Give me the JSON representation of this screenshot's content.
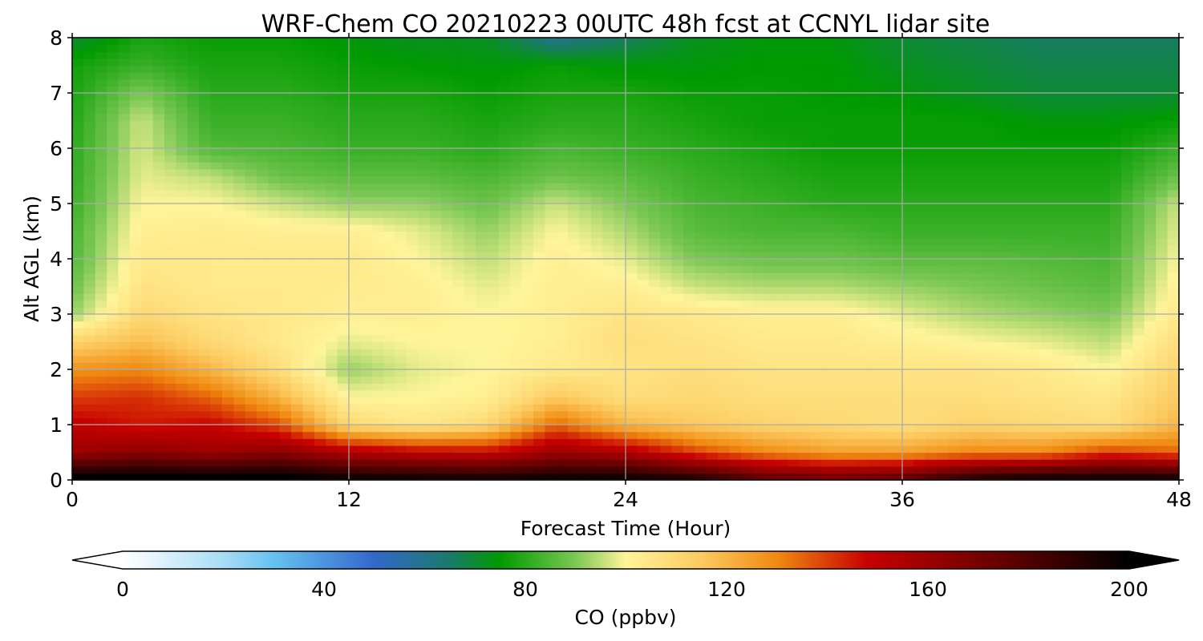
{
  "chart_data": {
    "type": "heatmap",
    "title": "WRF-Chem CO  20210223 00UTC 48h fcst at CCNYL lidar site",
    "xlabel": "Forecast Time (Hour)",
    "ylabel": "Alt AGL (km)",
    "xlim": [
      0,
      48
    ],
    "ylim": [
      0,
      8
    ],
    "x_ticks": [
      0,
      12,
      24,
      36,
      48
    ],
    "y_ticks": [
      0,
      1,
      2,
      3,
      4,
      5,
      6,
      7,
      8
    ],
    "grid": true,
    "x": [
      0,
      3,
      6,
      9,
      12,
      15,
      18,
      21,
      24,
      27,
      30,
      33,
      36,
      39,
      42,
      45,
      48
    ],
    "y": [
      0,
      0.5,
      1,
      1.5,
      2,
      2.5,
      3,
      3.5,
      4,
      4.5,
      5,
      5.5,
      6,
      6.5,
      7,
      7.5,
      8
    ],
    "z_units": "ppbv",
    "z": [
      [
        205,
        205,
        205,
        205,
        200,
        200,
        198,
        200,
        200,
        195,
        180,
        175,
        180,
        195,
        200,
        200,
        200
      ],
      [
        160,
        165,
        160,
        165,
        155,
        150,
        148,
        160,
        155,
        140,
        130,
        125,
        125,
        130,
        130,
        140,
        135
      ],
      [
        150,
        145,
        148,
        138,
        110,
        105,
        110,
        135,
        120,
        115,
        112,
        110,
        108,
        112,
        110,
        108,
        120
      ],
      [
        140,
        142,
        135,
        120,
        100,
        100,
        102,
        115,
        108,
        110,
        108,
        108,
        108,
        108,
        106,
        105,
        115
      ],
      [
        128,
        130,
        120,
        108,
        92,
        98,
        100,
        104,
        106,
        108,
        106,
        106,
        106,
        106,
        104,
        100,
        112
      ],
      [
        112,
        118,
        110,
        104,
        98,
        100,
        100,
        102,
        108,
        106,
        104,
        104,
        102,
        100,
        98,
        95,
        108
      ],
      [
        92,
        110,
        106,
        104,
        102,
        102,
        100,
        102,
        106,
        104,
        102,
        102,
        98,
        94,
        92,
        90,
        104
      ],
      [
        88,
        106,
        104,
        104,
        103,
        102,
        98,
        102,
        102,
        96,
        94,
        94,
        92,
        90,
        88,
        86,
        102
      ],
      [
        85,
        104,
        104,
        104,
        104,
        100,
        95,
        102,
        98,
        90,
        88,
        88,
        86,
        86,
        85,
        84,
        100
      ],
      [
        84,
        102,
        103,
        102,
        102,
        98,
        92,
        100,
        94,
        86,
        84,
        84,
        82,
        82,
        82,
        82,
        98
      ],
      [
        82,
        100,
        100,
        96,
        92,
        92,
        88,
        96,
        90,
        84,
        82,
        80,
        80,
        80,
        80,
        80,
        96
      ],
      [
        81,
        98,
        95,
        88,
        86,
        86,
        84,
        88,
        86,
        82,
        80,
        78,
        78,
        78,
        78,
        78,
        88
      ],
      [
        80,
        97,
        85,
        84,
        82,
        82,
        80,
        84,
        82,
        80,
        78,
        76,
        76,
        76,
        76,
        76,
        82
      ],
      [
        79,
        96,
        82,
        82,
        80,
        80,
        78,
        80,
        80,
        78,
        76,
        76,
        76,
        76,
        74,
        74,
        76
      ],
      [
        78,
        90,
        80,
        80,
        78,
        78,
        76,
        78,
        78,
        76,
        76,
        75,
        74,
        72,
        70,
        70,
        70
      ],
      [
        77,
        82,
        78,
        78,
        76,
        75,
        74,
        76,
        74,
        74,
        75,
        75,
        72,
        70,
        68,
        68,
        68
      ],
      [
        70,
        78,
        76,
        76,
        74,
        72,
        72,
        60,
        66,
        72,
        74,
        74,
        70,
        68,
        66,
        66,
        66
      ]
    ],
    "colorbar": {
      "label": "CO  (ppbv)",
      "min": 0,
      "max": 200,
      "ticks": [
        0,
        40,
        80,
        120,
        160,
        200
      ],
      "extend": "both",
      "colors": {
        "0": "#ffffff",
        "20": "#a8dcf6",
        "30": "#66c2f0",
        "50": "#3368cc",
        "65": "#1a7a6a",
        "75": "#009a00",
        "90": "#7cc855",
        "100": "#fff49a",
        "115": "#fcca60",
        "130": "#f08a10",
        "148": "#c80000",
        "175": "#640000",
        "200": "#000000"
      }
    }
  }
}
